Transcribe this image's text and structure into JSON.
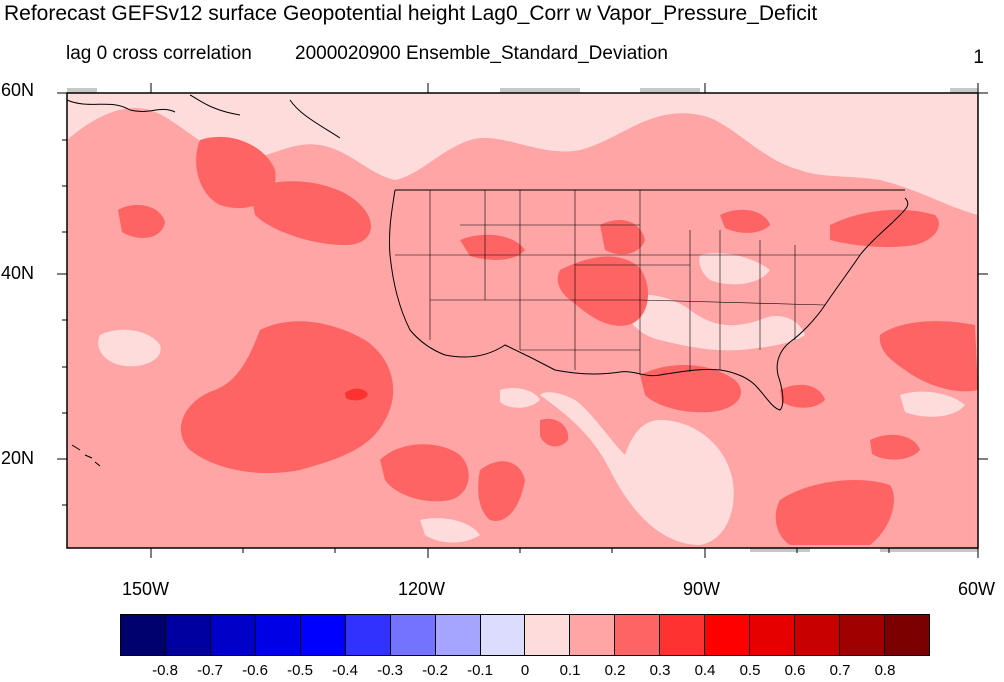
{
  "header": {
    "title": "Reforecast GEFSv12 surface Geopotential height Lag0_Corr w Vapor_Pressure_Deficit",
    "left_string": "lag 0 cross correlation",
    "center_string": "2000020900 Ensemble_Standard_Deviation",
    "right_string": "1"
  },
  "axes": {
    "lat_labels": [
      "60N",
      "40N",
      "20N"
    ],
    "lon_labels": [
      "150W",
      "120W",
      "90W",
      "60W"
    ]
  },
  "colorbar": {
    "colors": [
      "#00006e",
      "#0000a0",
      "#0000c8",
      "#0000e6",
      "#0000ff",
      "#3232ff",
      "#7373ff",
      "#a5a5ff",
      "#dcdcff",
      "#ffdcdc",
      "#ffa5a5",
      "#ff6464",
      "#ff3232",
      "#ff0000",
      "#e60000",
      "#c80000",
      "#a00000",
      "#7d0000"
    ],
    "labels": [
      "-0.8",
      "-0.7",
      "-0.6",
      "-0.5",
      "-0.4",
      "-0.3",
      "-0.2",
      "-0.1",
      "0",
      "0.1",
      "0.2",
      "0.3",
      "0.4",
      "0.5",
      "0.6",
      "0.7",
      "0.8"
    ]
  },
  "fill_colors": {
    "base": "#ffa5a5",
    "light": "#ffdcdc",
    "mid": "#ff6464",
    "strong": "#ff3232",
    "missing": "#c8c8c8"
  }
}
